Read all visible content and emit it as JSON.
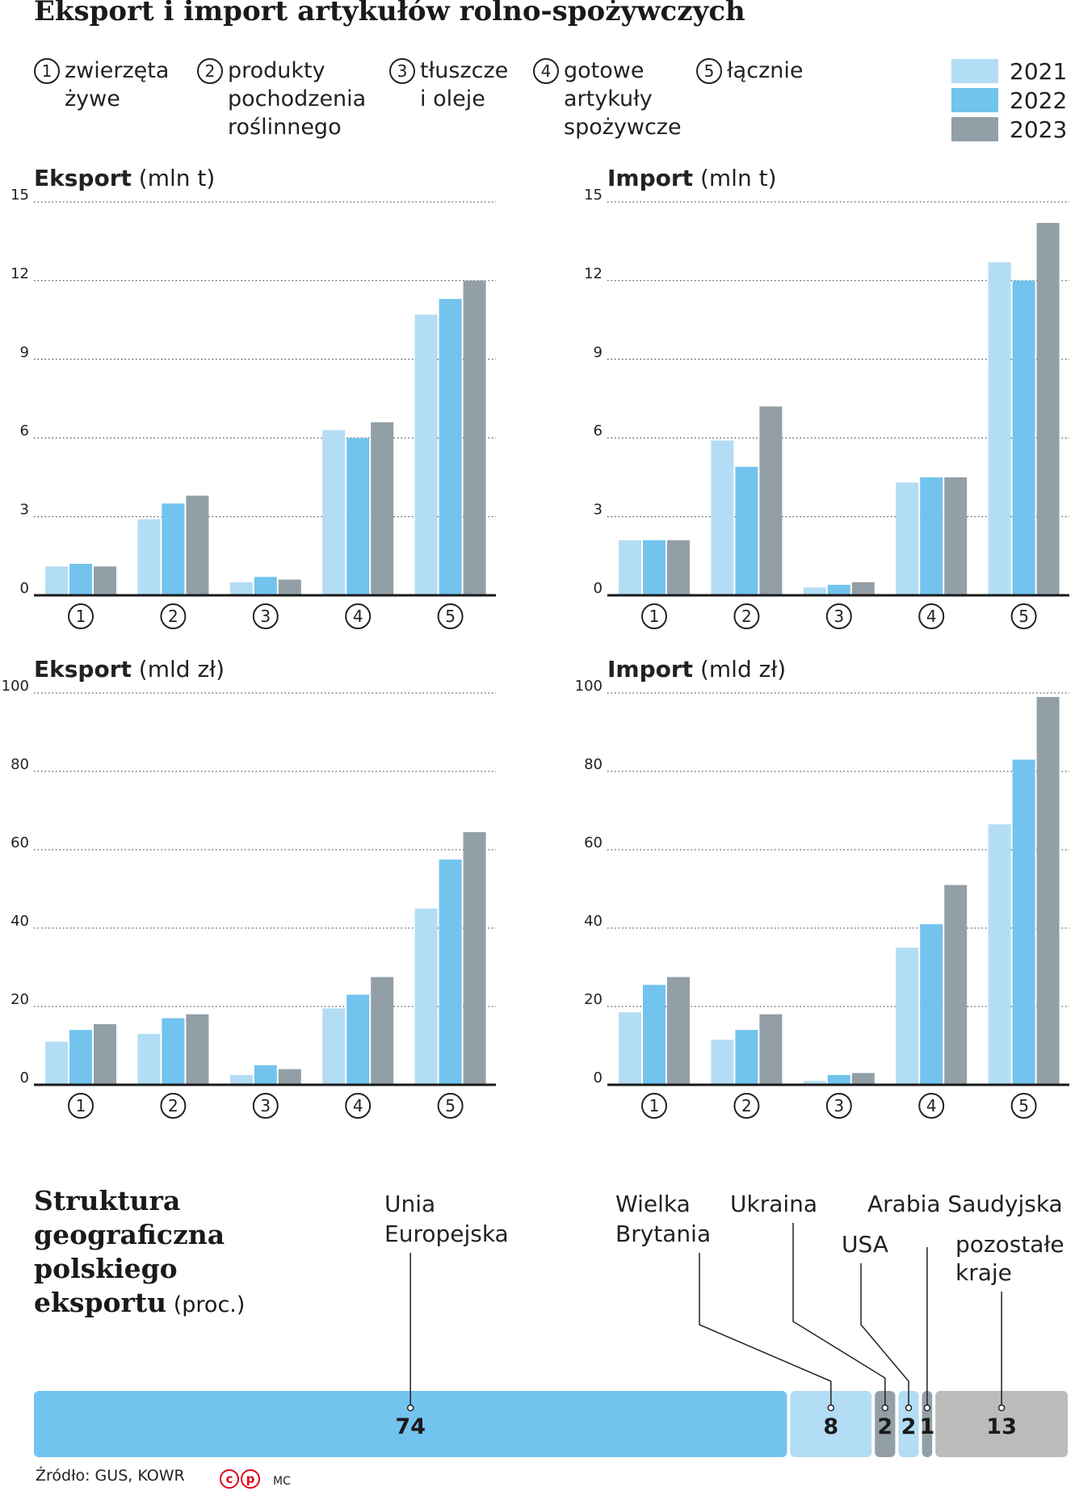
{
  "title": "Eksport i import artykułów rolno-spożywczych",
  "categories_legend": [
    {
      "num": "1",
      "lines": [
        "zwierzęta",
        "żywe"
      ]
    },
    {
      "num": "2",
      "lines": [
        "produkty",
        "pochodzenia",
        "roślinnego"
      ]
    },
    {
      "num": "3",
      "lines": [
        "tłuszcze",
        "i oleje"
      ]
    },
    {
      "num": "4",
      "lines": [
        "gotowe",
        "artykuły",
        "spożywcze"
      ]
    },
    {
      "num": "5",
      "lines": [
        "łącznie"
      ]
    }
  ],
  "years_legend": [
    {
      "year": "2021",
      "color": "#b3ddf4"
    },
    {
      "year": "2022",
      "color": "#72c3ee"
    },
    {
      "year": "2023",
      "color": "#939fa7"
    }
  ],
  "chart_data": [
    {
      "type": "bar",
      "title": "Eksport",
      "unit": "(mln t)",
      "categories": [
        "1",
        "2",
        "3",
        "4",
        "5"
      ],
      "series": [
        {
          "name": "2021",
          "values": [
            1.1,
            2.9,
            0.5,
            6.3,
            10.7
          ]
        },
        {
          "name": "2022",
          "values": [
            1.2,
            3.5,
            0.7,
            6.0,
            11.3
          ]
        },
        {
          "name": "2023",
          "values": [
            1.1,
            3.8,
            0.6,
            6.6,
            12.0
          ]
        }
      ],
      "ylim": [
        0,
        15
      ],
      "yticks": [
        0,
        3,
        6,
        9,
        12,
        15
      ],
      "grid": true
    },
    {
      "type": "bar",
      "title": "Import",
      "unit": "(mln t)",
      "categories": [
        "1",
        "2",
        "3",
        "4",
        "5"
      ],
      "series": [
        {
          "name": "2021",
          "values": [
            2.1,
            5.9,
            0.3,
            4.3,
            12.7
          ]
        },
        {
          "name": "2022",
          "values": [
            2.1,
            4.9,
            0.4,
            4.5,
            12.0
          ]
        },
        {
          "name": "2023",
          "values": [
            2.1,
            7.2,
            0.5,
            4.5,
            14.2
          ]
        }
      ],
      "ylim": [
        0,
        15
      ],
      "yticks": [
        0,
        3,
        6,
        9,
        12,
        15
      ],
      "grid": true
    },
    {
      "type": "bar",
      "title": "Eksport",
      "unit": "(mld zł)",
      "categories": [
        "1",
        "2",
        "3",
        "4",
        "5"
      ],
      "series": [
        {
          "name": "2021",
          "values": [
            11,
            13,
            2.5,
            19.5,
            45
          ]
        },
        {
          "name": "2022",
          "values": [
            14,
            17,
            5,
            23,
            57.5
          ]
        },
        {
          "name": "2023",
          "values": [
            15.5,
            18,
            4,
            27.5,
            64.5
          ]
        }
      ],
      "ylim": [
        0,
        100
      ],
      "yticks": [
        0,
        20,
        40,
        60,
        80,
        100
      ],
      "grid": true
    },
    {
      "type": "bar",
      "title": "Import",
      "unit": "(mld zł)",
      "categories": [
        "1",
        "2",
        "3",
        "4",
        "5"
      ],
      "series": [
        {
          "name": "2021",
          "values": [
            18.5,
            11.5,
            1,
            35,
            66.5
          ]
        },
        {
          "name": "2022",
          "values": [
            25.5,
            14,
            2.5,
            41,
            83
          ]
        },
        {
          "name": "2023",
          "values": [
            27.5,
            18,
            3,
            51,
            99
          ]
        }
      ],
      "ylim": [
        0,
        100
      ],
      "yticks": [
        0,
        20,
        40,
        60,
        80,
        100
      ],
      "grid": true
    },
    {
      "type": "bar",
      "orientation": "stacked-horizontal",
      "title": "Struktura geograficzna polskiego eksportu",
      "unit": "(proc.)",
      "segments": [
        {
          "label": "Unia Europejska",
          "value": 74,
          "color": "#72c3ee"
        },
        {
          "label": "Wielka Brytania",
          "value": 8,
          "color": "#b3ddf4"
        },
        {
          "label": "Ukraina",
          "value": 2,
          "color": "#939fa7"
        },
        {
          "label": "USA",
          "value": 2,
          "color": "#b3ddf4"
        },
        {
          "label": "Arabia Saudyjska",
          "value": 1,
          "color": "#939fa7"
        },
        {
          "label": "pozostałe kraje",
          "value": 13,
          "color": "#bbbbbb"
        }
      ]
    }
  ],
  "struct_title": {
    "main": "Struktura geograficzna polskiego eksportu",
    "unit": "(proc.)"
  },
  "footer": {
    "source": "Źródło: GUS, KOWR",
    "author": "MC",
    "logo": "PAP"
  }
}
